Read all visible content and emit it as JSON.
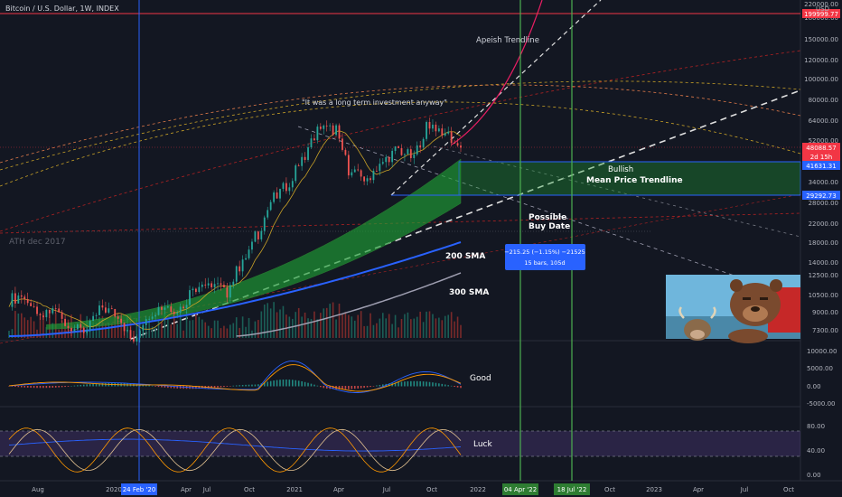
{
  "header": {
    "title": "Bitcoin / U.S. Dollar, 1W, INDEX"
  },
  "colors": {
    "background": "#131722",
    "up": "#26a69a",
    "down": "#ef5350",
    "sma200": "#2962ff",
    "sma300": "#9e9eb0",
    "green_band": "#1f9e35",
    "date_marker_blue": "#2962ff",
    "date_marker_green": "#4caf50",
    "macd": "#2962ff",
    "signal": "#ff9800",
    "rsi_band": "#7e57c2"
  },
  "price_axis": {
    "unit": "USD",
    "ticks": [
      "220000.00",
      "180000.00",
      "150000.00",
      "120000.00",
      "100000.00",
      "80000.00",
      "64000.00",
      "52000.00",
      "42000.00",
      "34000.00",
      "28000.00",
      "22000.00",
      "18000.00",
      "14000.00",
      "12500.00",
      "10500.00",
      "9000.00",
      "7300.00"
    ],
    "labels": [
      {
        "text": "199999.77",
        "color": "#f23645"
      },
      {
        "text": "48088.57",
        "color": "#f23645"
      },
      {
        "text": "2d 15h",
        "color": "#f23645"
      },
      {
        "text": "41631.31",
        "color": "#2962ff"
      },
      {
        "text": "29292.73",
        "color": "#2962ff"
      }
    ]
  },
  "macd_axis": {
    "ticks": [
      "10000.00",
      "5000.00",
      "0.00",
      "-5000.00"
    ]
  },
  "rsi_axis": {
    "ticks": [
      "80.00",
      "40.00",
      "0.00"
    ]
  },
  "time_axis": {
    "ticks": [
      "Aug",
      "2020",
      "Apr",
      "Jul",
      "Oct",
      "2021",
      "Apr",
      "Jul",
      "Oct",
      "2022",
      "Apr",
      "Jul",
      "Oct",
      "2023",
      "Apr",
      "Jul",
      "Oct"
    ],
    "highlights": [
      {
        "text": "24 Feb '20",
        "color": "#2962ff"
      },
      {
        "text": "04 Apr '22",
        "color": "#2e7d32"
      },
      {
        "text": "18 Jul '22",
        "color": "#2e7d32"
      }
    ]
  },
  "annotations": {
    "quote": "\"It was a long term investment anyway\"",
    "apeish": "Apeish Trendline",
    "ath": "ATH dec 2017",
    "bullish": "Bullish",
    "mean": "Mean Price Trendline",
    "possible": "Possible",
    "buy_date": "Buy Date",
    "sma200": "200 SMA",
    "sma300": "300 SMA",
    "good": "Good",
    "luck": "Luck"
  },
  "measure_box": {
    "line1": "−215.25 (−1.15%) −21525",
    "line2": "15 bars, 105d"
  },
  "meme_image": {
    "description": "bear-and-bull-meme"
  },
  "chart_data": {
    "type": "candlestick",
    "title": "Bitcoin / U.S. Dollar, 1W, INDEX",
    "y_scale": "log",
    "ylim": [
      6500,
      230000
    ],
    "x": [
      "2019-07",
      "2019-08",
      "2019-09",
      "2019-10",
      "2019-11",
      "2019-12",
      "2020-01",
      "2020-02",
      "2020-03",
      "2020-04",
      "2020-05",
      "2020-06",
      "2020-07",
      "2020-08",
      "2020-09",
      "2020-10",
      "2020-11",
      "2020-12",
      "2021-01",
      "2021-02",
      "2021-03",
      "2021-04",
      "2021-05",
      "2021-06",
      "2021-07",
      "2021-08",
      "2021-09",
      "2021-10",
      "2021-11",
      "2021-12"
    ],
    "close": [
      10000,
      10500,
      8300,
      9200,
      7500,
      7200,
      9400,
      8700,
      6400,
      8800,
      9500,
      9200,
      11300,
      11700,
      10800,
      13800,
      19600,
      29000,
      33000,
      45000,
      58800,
      57700,
      37300,
      35000,
      41500,
      47100,
      43800,
      61300,
      57000,
      48088
    ],
    "series": [
      {
        "name": "200 SMA",
        "values": [
          6000,
          6200,
          6400,
          6600,
          6800,
          7000,
          7200,
          7400,
          7600,
          7800,
          8100,
          8400,
          8800,
          9200,
          9600,
          10000,
          10500,
          11000,
          11600,
          12200,
          12900,
          13700,
          14400,
          15000,
          15600,
          16200,
          16700,
          17200,
          17700,
          18000
        ]
      },
      {
        "name": "300 SMA",
        "values": [
          null,
          null,
          null,
          null,
          null,
          null,
          null,
          null,
          null,
          null,
          null,
          6500,
          6700,
          6900,
          7100,
          7300,
          7500,
          7700,
          7900,
          8100,
          8400,
          8700,
          9000,
          9300,
          9700,
          10100,
          10600,
          11200,
          11800,
          12500
        ]
      }
    ],
    "lower_panels": [
      {
        "name": "Good",
        "type": "macd",
        "ylim": [
          -5000,
          10000
        ]
      },
      {
        "name": "Luck",
        "type": "stochastic-rsi",
        "ylim": [
          0,
          100
        ]
      }
    ]
  }
}
